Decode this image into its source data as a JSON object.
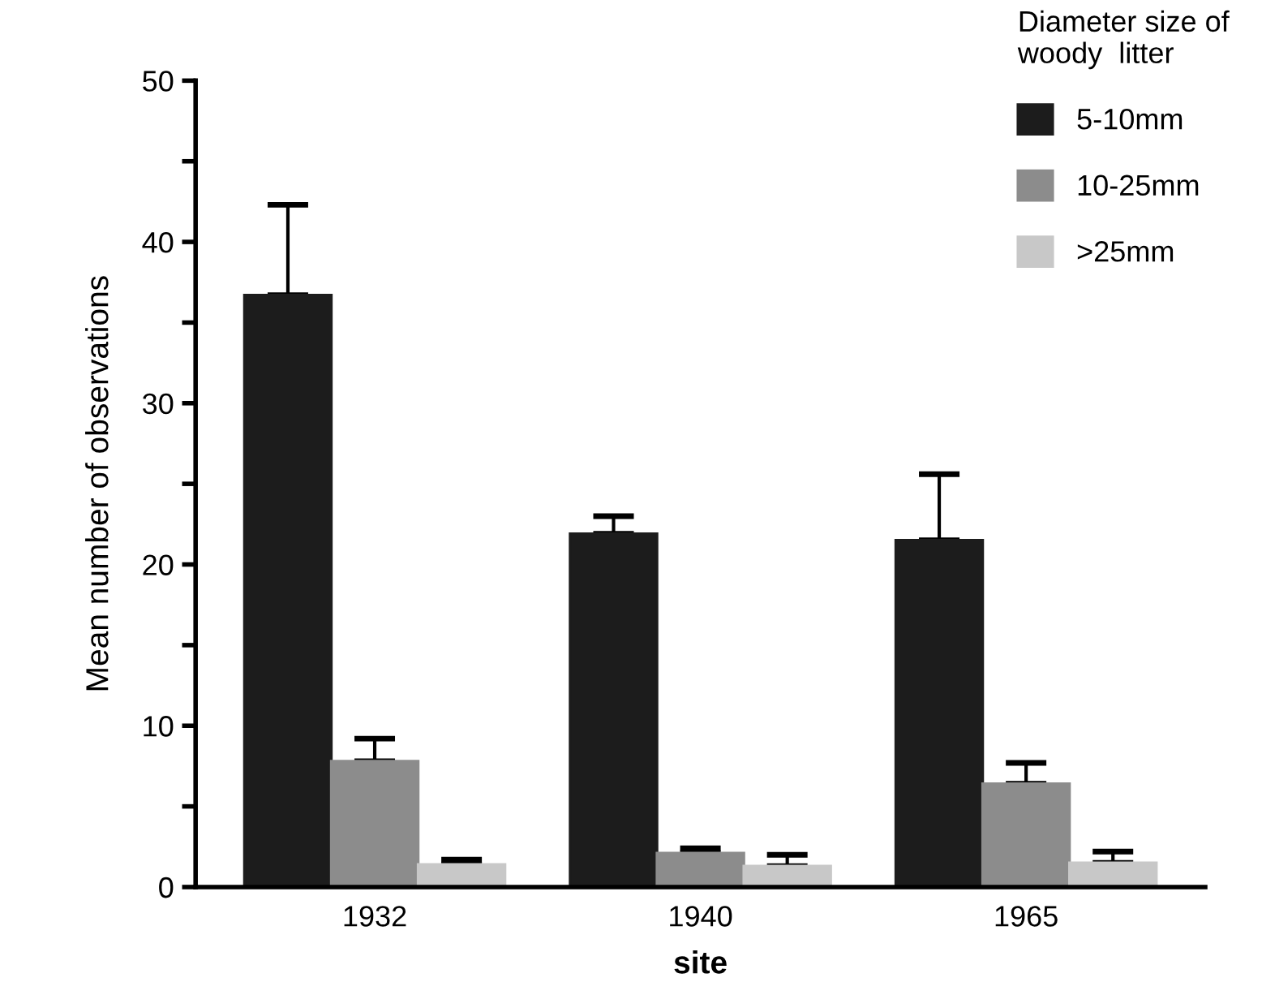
{
  "chart_data": {
    "type": "bar",
    "xlabel": "site",
    "ylabel": "Mean number of observations",
    "legend_title": "Diameter size of\nwoody  litter",
    "categories": [
      "1932",
      "1940",
      "1965"
    ],
    "series": [
      {
        "name": "5-10mm",
        "color": "#1c1c1c",
        "values": [
          36.7,
          21.9,
          21.5
        ],
        "errors": [
          [
            36.7,
            42.3
          ],
          [
            21.9,
            23.0
          ],
          [
            21.5,
            25.6
          ]
        ]
      },
      {
        "name": "10-25mm",
        "color": "#8c8c8c",
        "values": [
          7.8,
          2.1,
          6.4
        ],
        "errors": [
          [
            7.8,
            9.2
          ],
          [
            2.1,
            2.4
          ],
          [
            6.4,
            7.7
          ]
        ]
      },
      {
        "name": ">25mm",
        "color": "#c8c8c8",
        "values": [
          1.4,
          1.3,
          1.5
        ],
        "errors": [
          [
            1.4,
            1.7
          ],
          [
            1.3,
            2.0
          ],
          [
            1.5,
            2.2
          ]
        ]
      }
    ],
    "ylim": [
      0,
      50
    ],
    "yticks": [
      0,
      {
        "value": 5,
        "label": null
      },
      10,
      {
        "value": 15,
        "label": null
      },
      20,
      {
        "value": 25,
        "label": null
      },
      30,
      {
        "value": 35,
        "label": null
      },
      40,
      {
        "value": 45,
        "label": null
      },
      50
    ],
    "grid": false,
    "legend": "top right"
  }
}
